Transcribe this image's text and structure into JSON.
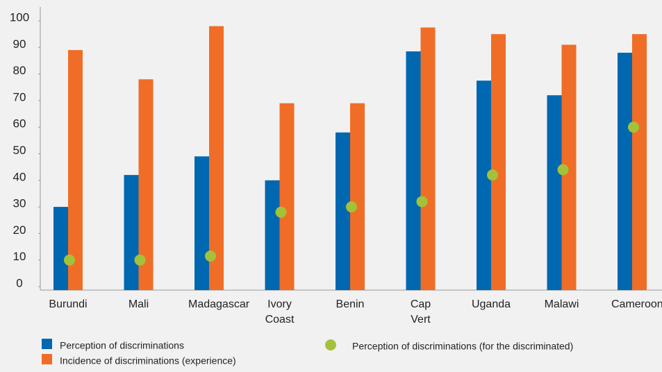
{
  "chart_data": {
    "type": "bar",
    "categories": [
      "Burundi",
      "Mali",
      "Madagascar",
      "Ivory Coast",
      "Benin",
      "Cap Vert",
      "Uganda",
      "Malawi",
      "Cameroon"
    ],
    "series": [
      {
        "name": "Perception of discriminations",
        "color": "#0067b1",
        "values": [
          30,
          42,
          49,
          40,
          58,
          88.5,
          77.5,
          72,
          88
        ]
      },
      {
        "name": "Incidence of discriminations (experience)",
        "color": "#f06d27",
        "values": [
          89,
          78,
          98,
          69,
          69,
          97.5,
          95,
          91,
          95
        ]
      },
      {
        "name": "Perception of discriminations (for the discriminated)",
        "color": "#a3c23a",
        "type": "scatter",
        "values": [
          10,
          10,
          11.5,
          28,
          30,
          32,
          42,
          44,
          60
        ]
      }
    ],
    "ylim": [
      0,
      100
    ],
    "yticks": [
      0,
      10,
      20,
      30,
      40,
      50,
      60,
      70,
      80,
      90,
      100
    ]
  }
}
